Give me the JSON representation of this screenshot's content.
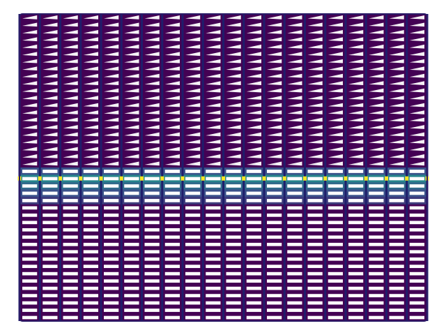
{
  "chart_data": {
    "type": "heatmap",
    "title": "",
    "xlabel": "",
    "ylabel": "",
    "axes_visible": false,
    "grid": false,
    "legend": "none",
    "colormap": [
      "#440154",
      "#3b528b",
      "#21918c",
      "#5ec962",
      "#fde725"
    ],
    "line_color": "#ffffff",
    "columns": 20,
    "rows": 42,
    "upper_region": {
      "rows": 21,
      "glyph": "triangle-left",
      "value": 0.0
    },
    "transition_rows": [
      {
        "row": 21,
        "value": 0.25
      },
      {
        "row": 22,
        "value": 0.45
      },
      {
        "row": 23,
        "value": 0.35
      },
      {
        "row": 24,
        "value": 0.25
      },
      {
        "row": 25,
        "value": 0.18
      }
    ],
    "highlight_row": {
      "row": 22,
      "node_value": 1.0
    },
    "lower_region": {
      "glyph": "horizontal-bar",
      "value": 0.0
    }
  }
}
